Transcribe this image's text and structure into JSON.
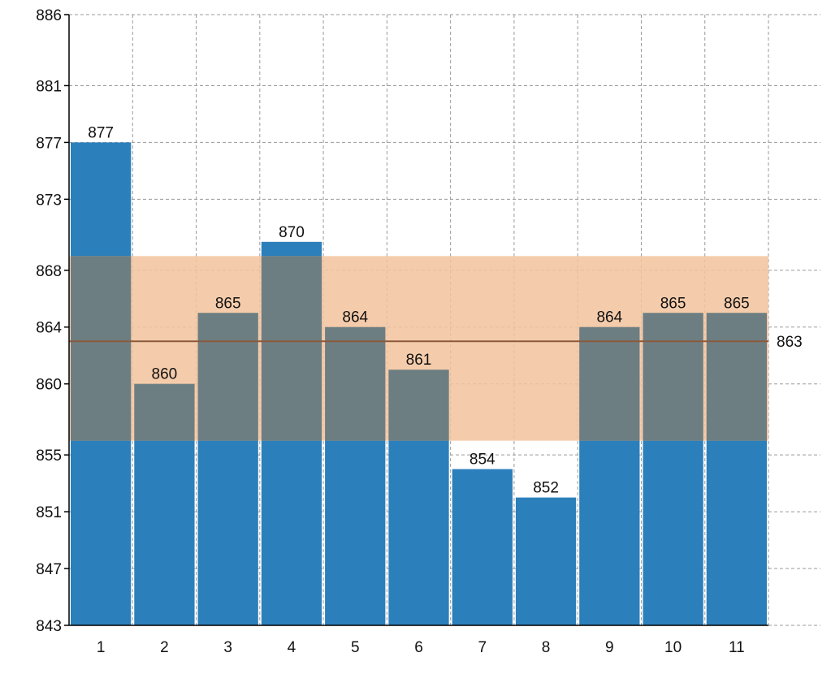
{
  "chart_data": {
    "type": "bar",
    "categories": [
      "1",
      "2",
      "3",
      "4",
      "5",
      "6",
      "7",
      "8",
      "9",
      "10",
      "11"
    ],
    "values": [
      877,
      860,
      865,
      870,
      864,
      861,
      854,
      852,
      864,
      865,
      865
    ],
    "data_labels": [
      "877",
      "860",
      "865",
      "870",
      "864",
      "861",
      "854",
      "852",
      "864",
      "865",
      "865"
    ],
    "y_ticks": [
      843,
      847,
      851,
      855,
      860,
      864,
      868,
      873,
      877,
      881,
      886
    ],
    "y_tick_labels": [
      "843",
      "847",
      "851",
      "855",
      "860",
      "864",
      "868",
      "873",
      "877",
      "881",
      "886"
    ],
    "ylim": [
      843,
      886
    ],
    "grid": true,
    "mean_line": {
      "value": 863,
      "label": "863"
    },
    "band": {
      "low": 856,
      "high": 869
    },
    "colors": {
      "bar": "#2b7fbb",
      "band": "#f3c39c",
      "overlap": "#6d7e82",
      "mean_line": "#8b5a3c"
    }
  }
}
